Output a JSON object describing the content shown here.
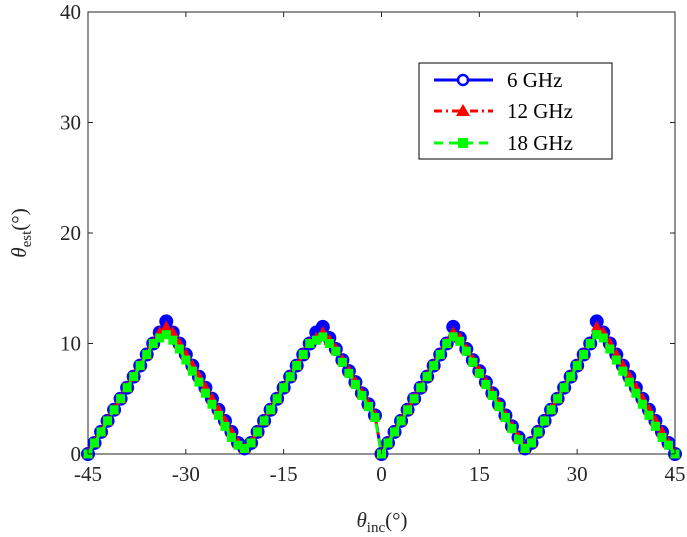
{
  "chart_data": {
    "type": "line",
    "title": "",
    "xlabel": "θinc(°)",
    "xlabel_parts": {
      "symbol": "θ",
      "sub": "inc",
      "unit": "(°)"
    },
    "ylabel": "θest(°)",
    "ylabel_parts": {
      "symbol": "θ",
      "sub": "est",
      "unit": "(°)"
    },
    "xlim": [
      -45,
      45
    ],
    "ylim": [
      0,
      40
    ],
    "xticks": [
      -45,
      -30,
      -15,
      0,
      15,
      30,
      45
    ],
    "yticks": [
      0,
      10,
      20,
      30,
      40
    ],
    "xtick_labels": [
      "-45",
      "-30",
      "-15",
      "0",
      "15",
      "30",
      "45"
    ],
    "ytick_labels": [
      "0",
      "10",
      "20",
      "30",
      "40"
    ],
    "grid": false,
    "legend_position": "top-right",
    "x": [
      -45,
      -44,
      -43,
      -42,
      -41,
      -40,
      -39,
      -38,
      -37,
      -36,
      -35,
      -34,
      -33,
      -32,
      -31,
      -30,
      -29,
      -28,
      -27,
      -26,
      -25,
      -24,
      -23,
      -22,
      -21,
      -20,
      -19,
      -18,
      -17,
      -16,
      -15,
      -14,
      -13,
      -12,
      -11,
      -10,
      -9,
      -8,
      -7,
      -6,
      -5,
      -4,
      -3,
      -2,
      -1,
      0,
      1,
      2,
      3,
      4,
      5,
      6,
      7,
      8,
      9,
      10,
      11,
      12,
      13,
      14,
      15,
      16,
      17,
      18,
      19,
      20,
      21,
      22,
      23,
      24,
      25,
      26,
      27,
      28,
      29,
      30,
      31,
      32,
      33,
      34,
      35,
      36,
      37,
      38,
      39,
      40,
      41,
      42,
      43,
      44,
      45
    ],
    "series": [
      {
        "name": "6 GHz",
        "color": "#0000ff",
        "marker": "circle",
        "line": "solid",
        "values": [
          0,
          1,
          2,
          3,
          4,
          5,
          6,
          7,
          8,
          9,
          10,
          11,
          12,
          11,
          10,
          9,
          8,
          7,
          6,
          5,
          4,
          3,
          2,
          1,
          0.5,
          1,
          2,
          3,
          4,
          5,
          6,
          7,
          8,
          9,
          10,
          11,
          11.5,
          10.5,
          9.5,
          8.5,
          7.5,
          6.5,
          5.5,
          4.5,
          3.5,
          0,
          1,
          2,
          3,
          4,
          5,
          6,
          7,
          8,
          9,
          10,
          11.5,
          10.5,
          9.5,
          8.5,
          7.5,
          6.5,
          5.5,
          4.5,
          3.5,
          2.5,
          1.5,
          0.5,
          1,
          2,
          3,
          4,
          5,
          6,
          7,
          8,
          9,
          10,
          12,
          11,
          10,
          9,
          8,
          7,
          6,
          5,
          4,
          3,
          2,
          1,
          0
        ]
      },
      {
        "name": "12 GHz",
        "color": "#ff0000",
        "marker": "triangle",
        "line": "dashdot",
        "values": [
          0,
          1,
          2,
          3,
          4,
          5,
          6,
          7,
          8,
          9,
          10,
          11,
          11.5,
          11,
          10,
          9,
          8,
          7,
          6,
          5,
          4,
          3,
          2,
          1,
          0.5,
          1,
          2,
          3,
          4,
          5,
          6,
          7,
          8,
          9,
          10,
          10.5,
          11,
          10.3,
          9.5,
          8.5,
          7.5,
          6.5,
          5.5,
          4.5,
          3.5,
          0,
          1,
          2,
          3,
          4,
          5,
          6,
          7,
          8,
          9,
          10,
          11,
          10.5,
          9.5,
          8.5,
          7.5,
          6.5,
          5.5,
          4.5,
          3.5,
          2.5,
          1.5,
          0.5,
          1,
          2,
          3,
          4,
          5,
          6,
          7,
          8,
          9,
          10,
          11.5,
          11,
          10,
          9,
          8,
          7,
          6,
          5,
          4,
          3,
          2,
          1,
          0
        ]
      },
      {
        "name": "18 GHz",
        "color": "#00ff00",
        "marker": "square",
        "line": "dashed",
        "values": [
          0,
          1,
          2,
          3,
          4,
          5,
          6,
          7,
          8,
          9,
          10,
          10.5,
          10.8,
          10.3,
          9.5,
          8.5,
          7.5,
          6.5,
          5.5,
          4.5,
          3.5,
          2.5,
          1.5,
          0.8,
          0.5,
          1,
          2,
          3,
          4,
          5,
          6,
          7,
          8,
          9,
          10,
          10.3,
          10.6,
          10,
          9.3,
          8.3,
          7.3,
          6.3,
          5.3,
          4.3,
          3.3,
          0,
          1,
          2,
          3,
          4,
          5,
          6,
          7,
          8,
          9,
          10,
          10.6,
          10.2,
          9.3,
          8.3,
          7.3,
          6.3,
          5.3,
          4.3,
          3.3,
          2.3,
          1.3,
          0.5,
          1,
          2,
          3,
          4,
          5,
          6,
          7,
          8,
          9,
          10,
          10.8,
          10.5,
          9.5,
          8.5,
          7.5,
          6.5,
          5.5,
          4.5,
          3.5,
          2.5,
          1.5,
          0.8,
          0
        ]
      }
    ]
  }
}
